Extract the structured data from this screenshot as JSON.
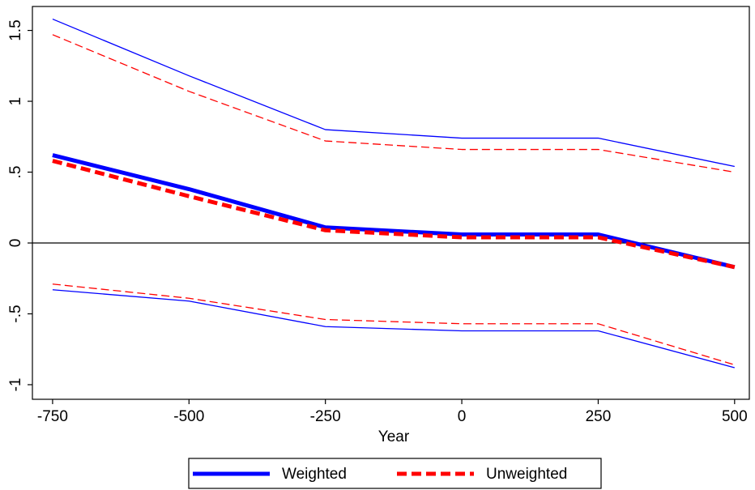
{
  "chart_data": {
    "type": "line",
    "x_label": "Year",
    "x": [
      -750,
      -500,
      -250,
      0,
      250,
      500
    ],
    "series": [
      {
        "name": "Weighted",
        "color": "#0000ff",
        "width": 5,
        "dash": false,
        "values": [
          0.62,
          0.38,
          0.11,
          0.06,
          0.06,
          -0.17
        ]
      },
      {
        "name": "Unweighted",
        "color": "#ff0000",
        "width": 5,
        "dash": true,
        "values": [
          0.58,
          0.33,
          0.09,
          0.04,
          0.04,
          -0.17
        ]
      },
      {
        "color": "#0000ff",
        "width": 1.3,
        "dash": false,
        "values": [
          1.58,
          1.18,
          0.8,
          0.74,
          0.74,
          0.54
        ]
      },
      {
        "color": "#0000ff",
        "width": 1.3,
        "dash": false,
        "values": [
          -0.33,
          -0.41,
          -0.59,
          -0.62,
          -0.62,
          -0.88
        ]
      },
      {
        "color": "#ff0000",
        "width": 1.3,
        "dash": true,
        "values": [
          1.47,
          1.07,
          0.72,
          0.66,
          0.66,
          0.5
        ]
      },
      {
        "color": "#ff0000",
        "width": 1.3,
        "dash": true,
        "values": [
          -0.29,
          -0.39,
          -0.54,
          -0.57,
          -0.57,
          -0.86
        ]
      }
    ],
    "xlim": [
      -787,
      527
    ],
    "ylim": [
      -1.103,
      1.669
    ],
    "xticks": [
      -750,
      -500,
      -250,
      0,
      250,
      500
    ],
    "yticks": [
      -1,
      {
        "value": -0.5,
        "label": "-.5"
      },
      0,
      {
        "value": 0.5,
        "label": ".5"
      },
      1,
      1.5
    ],
    "hline": 0,
    "legend": "bottom"
  }
}
